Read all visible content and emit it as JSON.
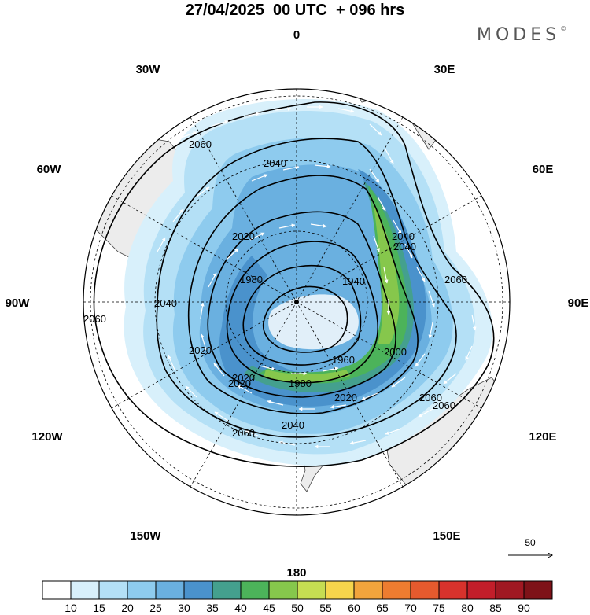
{
  "title": "27/04/2025  00 UTC  + 096 hrs",
  "brand": "MODES",
  "brand_mark": "©",
  "longitude_labels": {
    "lon_0": "0",
    "lon_30E": "30E",
    "lon_60E": "60E",
    "lon_90E": "90E",
    "lon_120E": "120E",
    "lon_150E": "150E",
    "lon_180": "180",
    "lon_150W": "150W",
    "lon_120W": "120W",
    "lon_90W": "90W",
    "lon_60W": "60W",
    "lon_30W": "30W"
  },
  "contour_labels": {
    "c1": "2060",
    "c2": "2040",
    "c3": "2020",
    "c4": "1980",
    "c5": "1940",
    "c6": "2040",
    "c7": "2060",
    "c8": "2040",
    "c9": "2020",
    "c10": "2060",
    "c11": "2020",
    "c12": "2040",
    "c13": "2060",
    "c14": "2020",
    "c15": "2000",
    "c16": "1960",
    "c17": "1980",
    "c18": "2020",
    "c19": "2060",
    "c20": "2040",
    "c21": "2060"
  },
  "wind_reference": {
    "value": "50"
  },
  "colorbar": {
    "colors": [
      "#ffffff",
      "#d8f0fb",
      "#b4e0f6",
      "#8ecbee",
      "#6ab0e0",
      "#4a92cc",
      "#44a08e",
      "#4cb35a",
      "#86c74c",
      "#c6dd52",
      "#f6d54c",
      "#f2a43c",
      "#ee7c30",
      "#e65a2e",
      "#d8322c",
      "#c21e2a",
      "#a01822",
      "#7e1218"
    ],
    "tick_labels": [
      "10",
      "15",
      "20",
      "25",
      "30",
      "35",
      "40",
      "45",
      "50",
      "55",
      "60",
      "65",
      "70",
      "75",
      "80",
      "85",
      "90"
    ]
  },
  "colors": {
    "land": "#eeeeee",
    "contour": "#000000",
    "wind_vector": "#ffffff"
  }
}
